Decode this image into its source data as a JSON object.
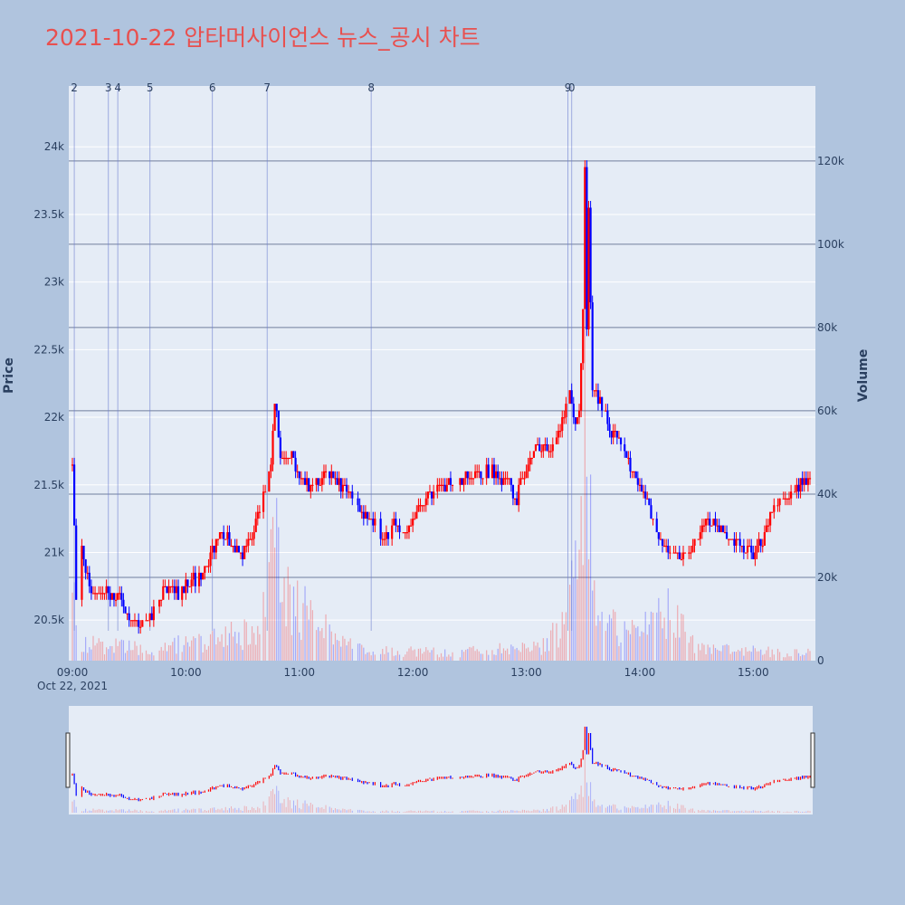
{
  "title": "2021-10-22 압타머사이언스 뉴스_공시 차트",
  "colors": {
    "up": "#ff0000",
    "down": "#0000ff",
    "paper": "#b0c4de",
    "plot": "#e5ecf6",
    "marker": "#6f7fd0"
  },
  "chart_data": {
    "type": "candlestick",
    "title": "2021-10-22 압타머사이언스 뉴스_공시 차트",
    "ylabel": "Price",
    "y2label": "Volume",
    "ylim": [
      20200,
      24450
    ],
    "y2lim": [
      0,
      138000
    ],
    "y_ticks": [
      20500,
      21000,
      21500,
      22000,
      22500,
      23000,
      23500,
      24000
    ],
    "y_tick_labels": [
      "20.5k",
      "21k",
      "21.5k",
      "22k",
      "22.5k",
      "23k",
      "23.5k",
      "24k"
    ],
    "y2_ticks": [
      0,
      20000,
      40000,
      60000,
      80000,
      100000,
      120000
    ],
    "y2_tick_labels": [
      "0",
      "20k",
      "40k",
      "60k",
      "80k",
      "100k",
      "120k"
    ],
    "x_range_minutes": [
      0,
      390
    ],
    "x_tick_minutes": [
      0,
      60,
      120,
      180,
      240,
      300,
      360
    ],
    "x_tick_labels": [
      "09:00",
      "10:00",
      "11:00",
      "12:00",
      "13:00",
      "14:00",
      "15:00"
    ],
    "x_date_label": "Oct 22, 2021",
    "price_keypoints": [
      [
        0,
        21650
      ],
      [
        2,
        20700
      ],
      [
        5,
        21000
      ],
      [
        10,
        20700
      ],
      [
        15,
        20750
      ],
      [
        20,
        20700
      ],
      [
        25,
        20650
      ],
      [
        30,
        20500
      ],
      [
        35,
        20450
      ],
      [
        40,
        20500
      ],
      [
        45,
        20650
      ],
      [
        50,
        20750
      ],
      [
        55,
        20700
      ],
      [
        60,
        20750
      ],
      [
        70,
        20850
      ],
      [
        75,
        21050
      ],
      [
        80,
        21150
      ],
      [
        85,
        21050
      ],
      [
        90,
        21000
      ],
      [
        95,
        21100
      ],
      [
        100,
        21400
      ],
      [
        105,
        21650
      ],
      [
        107,
        22150
      ],
      [
        110,
        21700
      ],
      [
        115,
        21750
      ],
      [
        120,
        21550
      ],
      [
        125,
        21500
      ],
      [
        130,
        21550
      ],
      [
        135,
        21600
      ],
      [
        140,
        21550
      ],
      [
        145,
        21450
      ],
      [
        150,
        21350
      ],
      [
        155,
        21250
      ],
      [
        160,
        21200
      ],
      [
        165,
        21100
      ],
      [
        170,
        21200
      ],
      [
        175,
        21150
      ],
      [
        180,
        21250
      ],
      [
        185,
        21350
      ],
      [
        190,
        21450
      ],
      [
        195,
        21500
      ],
      [
        200,
        21500
      ],
      [
        210,
        21550
      ],
      [
        215,
        21550
      ],
      [
        220,
        21600
      ],
      [
        230,
        21550
      ],
      [
        235,
        21400
      ],
      [
        240,
        21650
      ],
      [
        245,
        21800
      ],
      [
        250,
        21750
      ],
      [
        255,
        21800
      ],
      [
        260,
        22000
      ],
      [
        263,
        22200
      ],
      [
        266,
        21950
      ],
      [
        268,
        22050
      ],
      [
        270,
        22800
      ],
      [
        271,
        23900
      ],
      [
        272,
        22600
      ],
      [
        273,
        23500
      ],
      [
        275,
        22200
      ],
      [
        280,
        22100
      ],
      [
        285,
        21900
      ],
      [
        290,
        21800
      ],
      [
        295,
        21650
      ],
      [
        300,
        21500
      ],
      [
        305,
        21350
      ],
      [
        310,
        21100
      ],
      [
        315,
        21000
      ],
      [
        320,
        20950
      ],
      [
        325,
        21000
      ],
      [
        330,
        21100
      ],
      [
        335,
        21250
      ],
      [
        340,
        21200
      ],
      [
        345,
        21150
      ],
      [
        350,
        21100
      ],
      [
        355,
        21050
      ],
      [
        360,
        21000
      ],
      [
        365,
        21100
      ],
      [
        370,
        21300
      ],
      [
        375,
        21400
      ],
      [
        380,
        21450
      ],
      [
        385,
        21500
      ],
      [
        390,
        21550
      ]
    ],
    "volume_keypoints": [
      [
        0,
        15000
      ],
      [
        5,
        5000
      ],
      [
        40,
        3000
      ],
      [
        100,
        8000
      ],
      [
        107,
        35000
      ],
      [
        110,
        18000
      ],
      [
        150,
        3000
      ],
      [
        200,
        2000
      ],
      [
        250,
        4000
      ],
      [
        260,
        10000
      ],
      [
        268,
        25000
      ],
      [
        270,
        60000
      ],
      [
        271,
        118000
      ],
      [
        272,
        90000
      ],
      [
        274,
        40000
      ],
      [
        276,
        22000
      ],
      [
        280,
        10000
      ],
      [
        300,
        6000
      ],
      [
        312,
        15000
      ],
      [
        330,
        3000
      ],
      [
        390,
        2000
      ]
    ],
    "news_markers": [
      {
        "label": "2",
        "minute": 1
      },
      {
        "label": "3",
        "minute": 19
      },
      {
        "label": "4",
        "minute": 24
      },
      {
        "label": "5",
        "minute": 41
      },
      {
        "label": "6",
        "minute": 74
      },
      {
        "label": "7",
        "minute": 103
      },
      {
        "label": "8",
        "minute": 158
      },
      {
        "label": "9",
        "minute": 262
      },
      {
        "label": "0",
        "minute": 264
      }
    ]
  }
}
